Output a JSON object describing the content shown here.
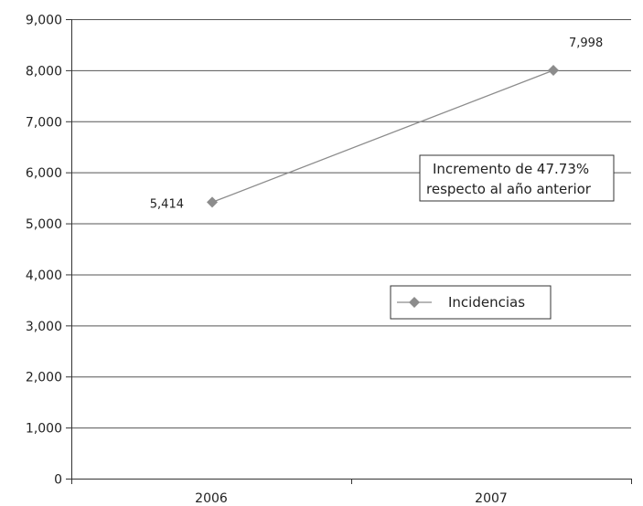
{
  "chart_data": {
    "type": "line",
    "categories": [
      "2006",
      "2007"
    ],
    "series": [
      {
        "name": "Incidencias",
        "values": [
          5414,
          7998
        ],
        "color": "#8c8c8c"
      }
    ],
    "data_labels": [
      "5,414",
      "7,998"
    ],
    "ylim": [
      0,
      9000
    ],
    "yticks": [
      0,
      1000,
      2000,
      3000,
      4000,
      5000,
      6000,
      7000,
      8000,
      9000
    ],
    "ytick_labels": [
      "0",
      "1,000",
      "2,000",
      "3,000",
      "4,000",
      "5,000",
      "6,000",
      "7,000",
      "8,000",
      "9,000"
    ],
    "grid": true,
    "legend_position": "center-right",
    "annotation": {
      "lines": [
        "Incremento de 47.73%",
        "respecto al año anterior"
      ]
    },
    "title": "",
    "xlabel": "",
    "ylabel": ""
  }
}
